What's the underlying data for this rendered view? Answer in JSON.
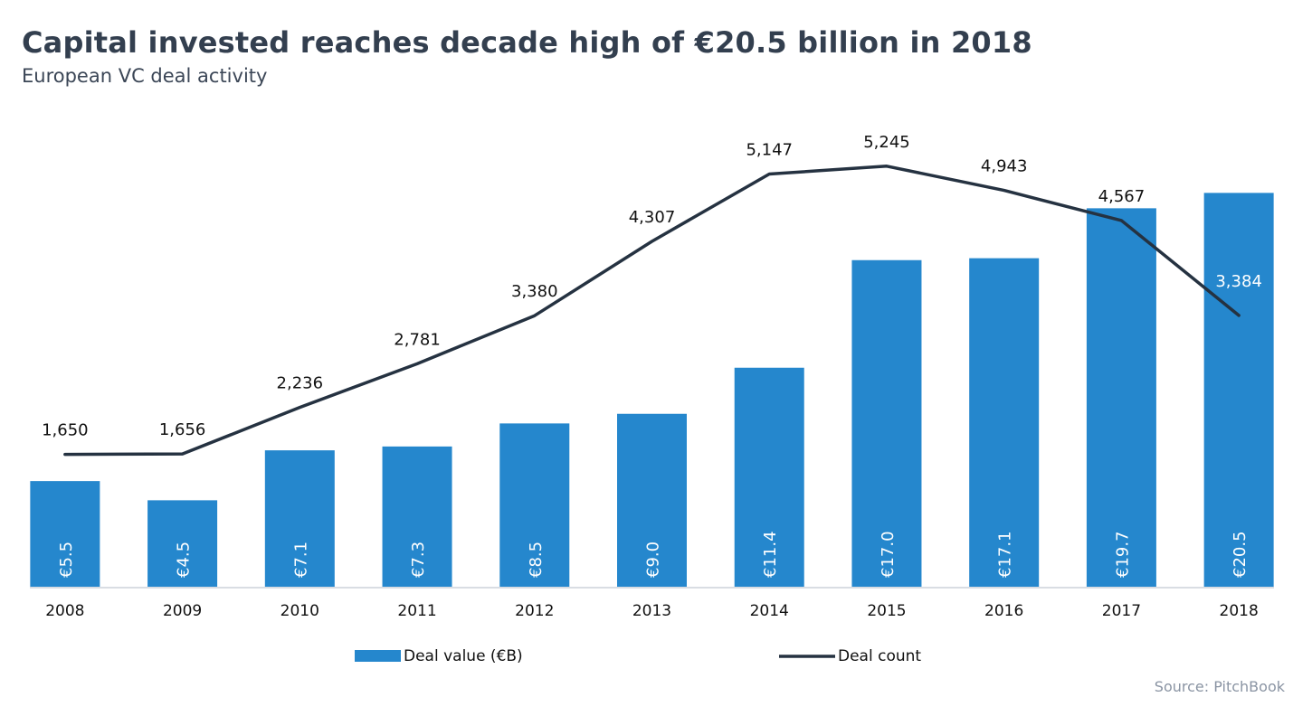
{
  "header": {
    "title": "Capital invested reaches decade high of €20.5 billion in 2018",
    "subtitle": "European VC deal activity"
  },
  "footer": {
    "source": "Source: PitchBook"
  },
  "colors": {
    "bar": "#2587cd",
    "line": "#253241",
    "axis": "#d9dde3"
  },
  "chart_data": {
    "type": "bar+line",
    "title": "Capital invested reaches decade high of €20.5 billion in 2018",
    "subtitle": "European VC deal activity",
    "categories": [
      "2008",
      "2009",
      "2010",
      "2011",
      "2012",
      "2013",
      "2014",
      "2015",
      "2016",
      "2017",
      "2018"
    ],
    "series": [
      {
        "name": "Deal value (€B)",
        "type": "bar",
        "values": [
          5.5,
          4.5,
          7.1,
          7.3,
          8.5,
          9.0,
          11.4,
          17.0,
          17.1,
          19.7,
          20.5
        ],
        "labels": [
          "€5.5",
          "€4.5",
          "€7.1",
          "€7.3",
          "€8.5",
          "€9.0",
          "€11.4",
          "€17.0",
          "€17.1",
          "€19.7",
          "€20.5"
        ],
        "axis": "primary",
        "ylim": [
          0,
          24
        ]
      },
      {
        "name": "Deal count",
        "type": "line",
        "values": [
          1650,
          1656,
          2236,
          2781,
          3380,
          4307,
          5147,
          5245,
          4943,
          4567,
          3384
        ],
        "labels": [
          "1,650",
          "1,656",
          "2,236",
          "2,781",
          "3,380",
          "4,307",
          "5,147",
          "5,245",
          "4,943",
          "4,567",
          "3,384"
        ],
        "axis": "secondary",
        "ylim": [
          0,
          5750
        ]
      }
    ],
    "xlabel": "",
    "ylabel": "",
    "grid": false,
    "legend": "bottom",
    "legend_entries": [
      "Deal value (€B)",
      "Deal count"
    ]
  }
}
